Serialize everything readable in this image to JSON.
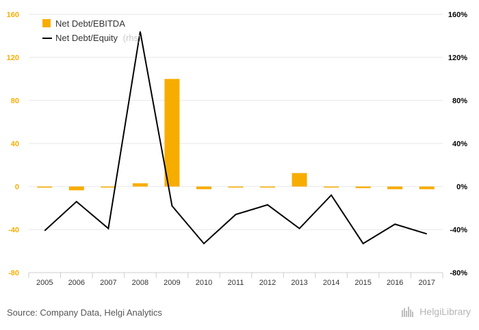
{
  "source": "Source: Company Data, Helgi Analytics",
  "brand": "HelgiLibrary",
  "colors": {
    "bar": "#F7AD00",
    "line": "#000000",
    "left_axis": "#F7AD00",
    "right_axis": "#000000",
    "grid": "#e6e6e6",
    "legend_rhs": "#c8c8c8"
  },
  "chart_data": {
    "type": "bar",
    "categories": [
      "2005",
      "2006",
      "2007",
      "2008",
      "2009",
      "2010",
      "2011",
      "2012",
      "2013",
      "2014",
      "2015",
      "2016",
      "2017"
    ],
    "series": [
      {
        "name": "Net Debt/EBITDA",
        "type": "bar",
        "axis": "left",
        "values": [
          -1.0,
          -3.5,
          -0.5,
          3.0,
          100.0,
          -2.5,
          -0.5,
          -0.5,
          12.5,
          -0.5,
          -1.5,
          -2.5,
          -2.5
        ]
      },
      {
        "name": "Net Debt/Equity",
        "legend_suffix": "(rhs)",
        "type": "line",
        "axis": "right",
        "values": [
          -41,
          -14,
          -39,
          144,
          -18,
          -53,
          -26,
          -17,
          -39,
          -8,
          -53,
          -35,
          -44
        ]
      }
    ],
    "left_axis": {
      "ticks": [
        "160",
        "120",
        "80",
        "40",
        "0",
        "-40",
        "-80"
      ],
      "tick_values": [
        160,
        120,
        80,
        40,
        0,
        -40,
        -80
      ],
      "ylim": [
        -80,
        160
      ]
    },
    "right_axis": {
      "ticks": [
        "160%",
        "120%",
        "80%",
        "40%",
        "0%",
        "-40%",
        "-80%"
      ],
      "tick_values": [
        160,
        120,
        80,
        40,
        0,
        -40,
        -80
      ],
      "ylim": [
        -80,
        160
      ]
    },
    "grid": true,
    "legend_position": "top-left"
  }
}
